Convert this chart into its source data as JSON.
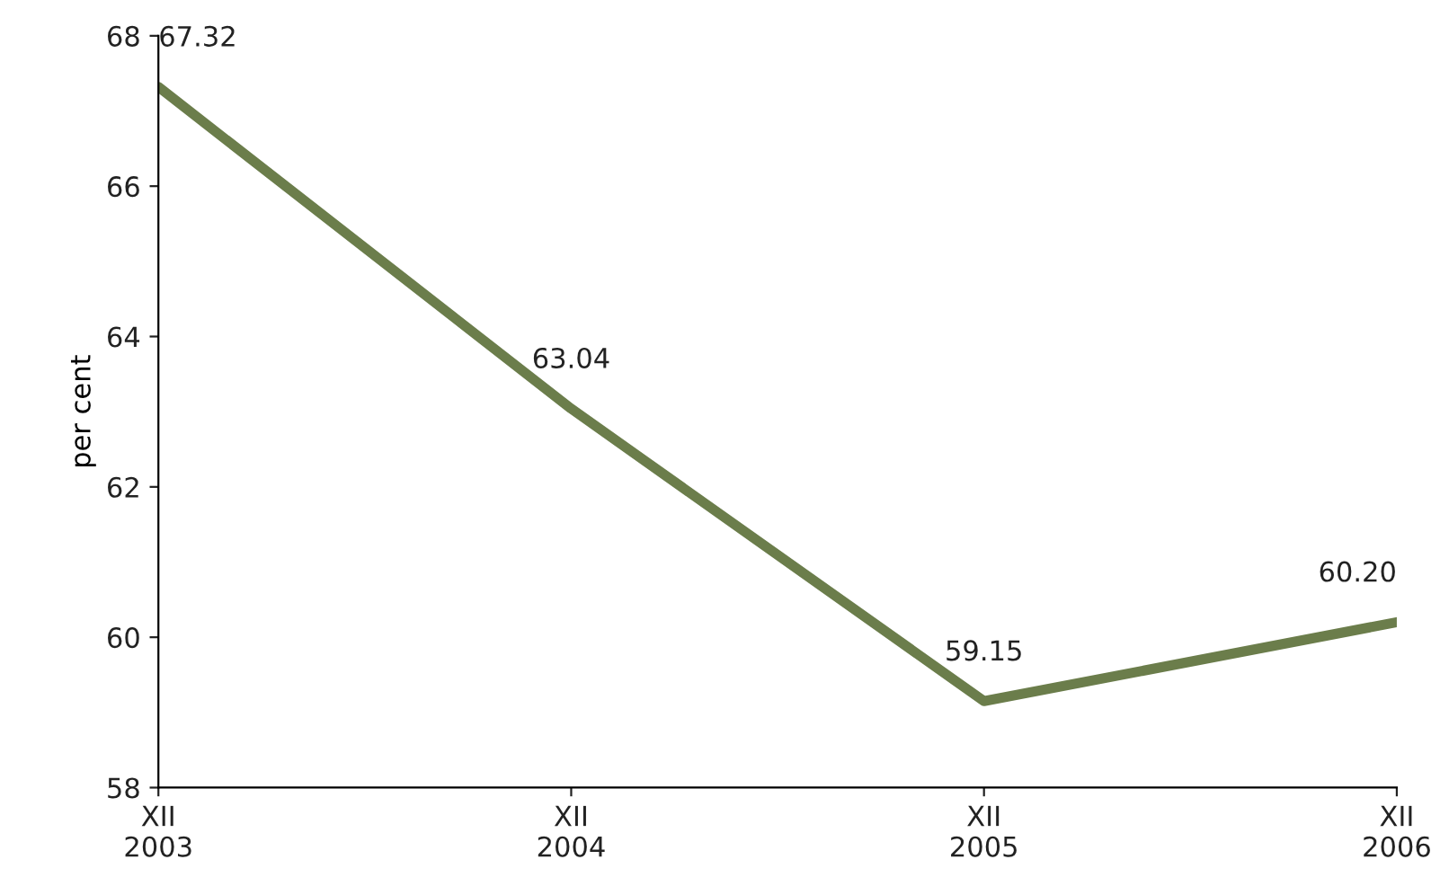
{
  "chart_data": {
    "type": "line",
    "ylabel": "per cent",
    "categories": [
      "XII\n2003",
      "XII\n2004",
      "XII\n2005",
      "XII\n2006"
    ],
    "series": [
      {
        "color": "#6b7d4b",
        "values": [
          67.32,
          63.04,
          59.15,
          60.2
        ],
        "value_labels": [
          "67.32",
          "63.04",
          "59.15",
          "60.20"
        ]
      }
    ],
    "ylim": [
      58,
      68
    ],
    "yticks": [
      58,
      60,
      62,
      64,
      66,
      68
    ],
    "grid": false,
    "marker": "none",
    "line_style": "solid"
  }
}
